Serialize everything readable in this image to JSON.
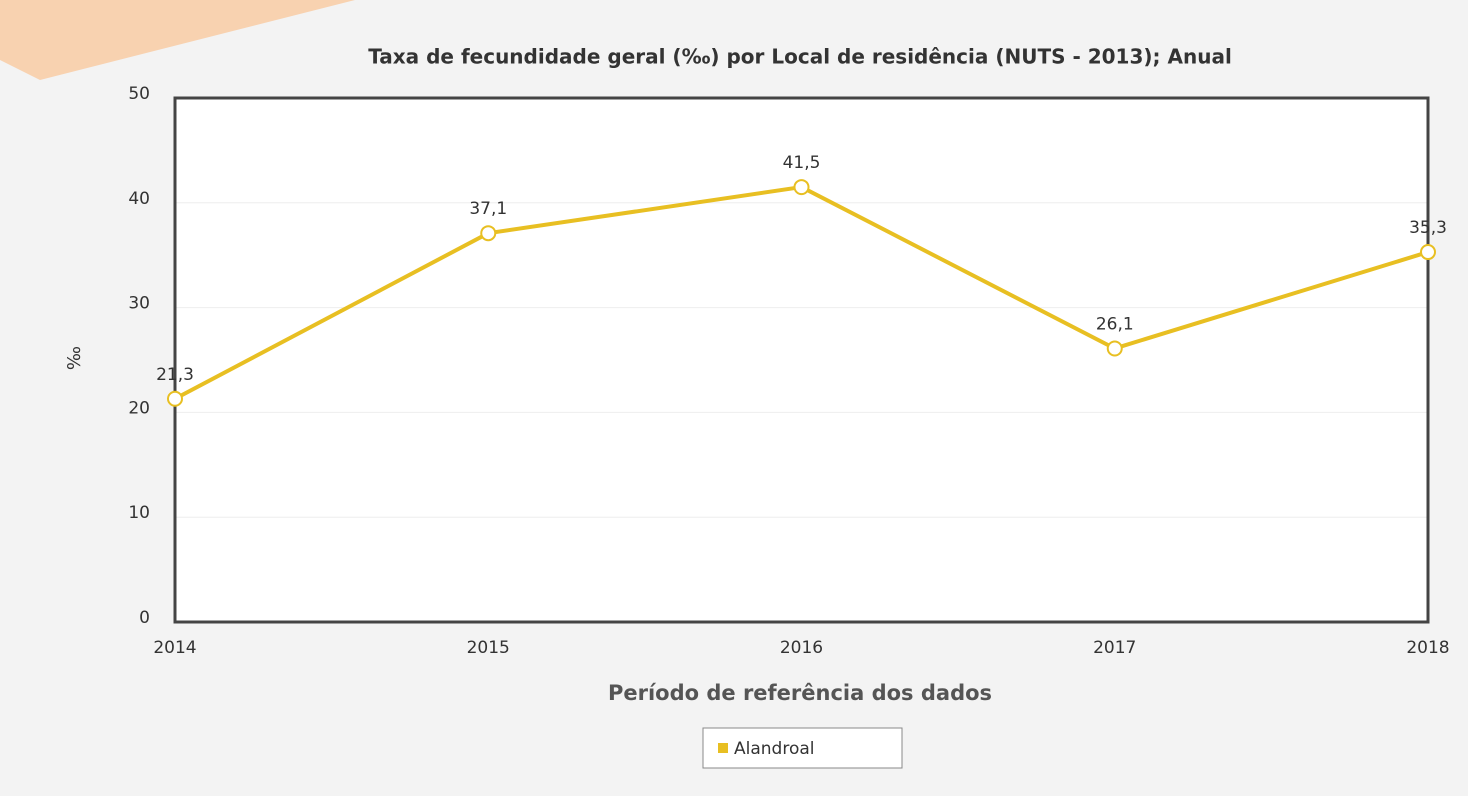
{
  "chart_data": {
    "type": "line",
    "title": "Taxa de fecundidade geral (‰) por Local de residência (NUTS - 2013); Anual",
    "x_label": "Período de referência dos dados",
    "y_label": "‰",
    "categories": [
      "2014",
      "2015",
      "2016",
      "2017",
      "2018"
    ],
    "series": [
      {
        "name": "Alandroal",
        "color": "#e8bf22",
        "values": [
          21.3,
          37.1,
          41.5,
          26.1,
          35.3
        ],
        "value_labels": [
          "21,3",
          "37,1",
          "41,5",
          "26,1",
          "35,3"
        ]
      }
    ],
    "ylim": [
      0,
      50
    ],
    "yticks": [
      0,
      10,
      20,
      30,
      40,
      50
    ],
    "grid": true,
    "legend": "bottom"
  }
}
